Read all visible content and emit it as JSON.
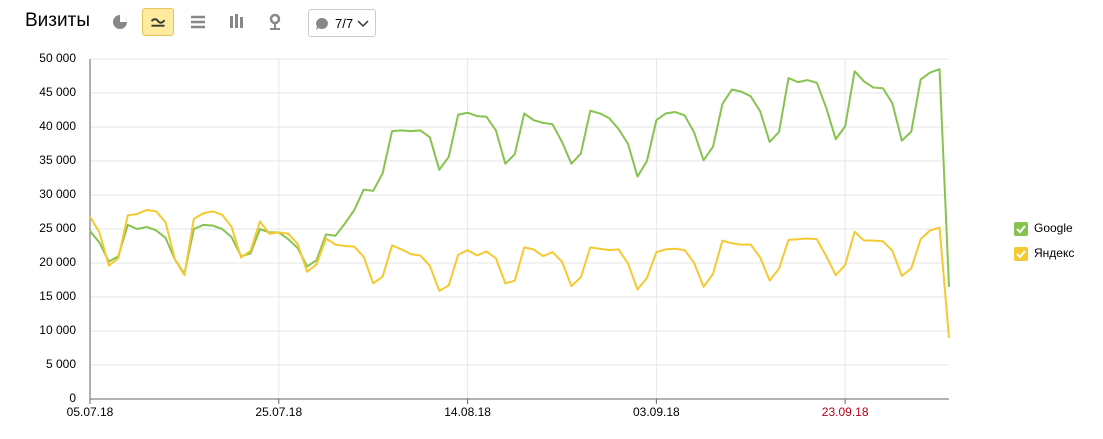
{
  "toolbar": {
    "title": "Визиты",
    "segments": "7/7"
  },
  "chart_data": {
    "type": "line",
    "categories": [
      "05.07.18",
      null,
      null,
      null,
      null,
      null,
      null,
      null,
      null,
      null,
      null,
      null,
      null,
      null,
      null,
      null,
      null,
      null,
      null,
      null,
      "25.07.18",
      null,
      null,
      null,
      null,
      null,
      null,
      null,
      null,
      null,
      null,
      null,
      null,
      null,
      null,
      null,
      null,
      null,
      null,
      null,
      "14.08.18",
      null,
      null,
      null,
      null,
      null,
      null,
      null,
      null,
      null,
      null,
      null,
      null,
      null,
      null,
      null,
      null,
      null,
      null,
      null,
      "03.09.18",
      null,
      null,
      null,
      null,
      null,
      null,
      null,
      null,
      null,
      null,
      null,
      null,
      null,
      null,
      null,
      null,
      null,
      null,
      null,
      "23.09.18",
      null,
      null,
      null,
      null,
      null,
      null,
      null,
      null,
      null,
      null,
      null
    ],
    "series": [
      {
        "name": "Google",
        "color": "#86c34f",
        "values": [
          24700,
          23000,
          20200,
          21000,
          25600,
          25000,
          25300,
          24800,
          23700,
          20500,
          18400,
          25000,
          25600,
          25500,
          25000,
          23800,
          21000,
          21400,
          25000,
          24500,
          24500,
          23500,
          22200,
          19500,
          20400,
          24200,
          24000,
          25800,
          27800,
          30800,
          30600,
          33200,
          39400,
          39500,
          39400,
          39500,
          38500,
          33700,
          35600,
          41800,
          42100,
          41600,
          41500,
          39500,
          34600,
          36000,
          42000,
          41000,
          40600,
          40400,
          37800,
          34600,
          36100,
          42400,
          42000,
          41300,
          39700,
          37500,
          32700,
          35000,
          41000,
          42000,
          42200,
          41700,
          39200,
          35100,
          37100,
          43400,
          45500,
          45200,
          44500,
          42300,
          37800,
          39300,
          47200,
          46600,
          46900,
          46500,
          42800,
          38200,
          40100,
          48200,
          46700,
          45800,
          45700,
          43500,
          38000,
          39300,
          47000,
          48000,
          48500,
          16500
        ]
      },
      {
        "name": "Яндекс",
        "color": "#f5c932",
        "values": [
          26800,
          24500,
          19600,
          20700,
          27000,
          27200,
          27800,
          27600,
          26000,
          20500,
          18200,
          26500,
          27300,
          27600,
          27100,
          25300,
          20800,
          21800,
          26100,
          24300,
          24500,
          24300,
          22800,
          18700,
          19800,
          23600,
          22700,
          22500,
          22400,
          20900,
          17000,
          18000,
          22600,
          22000,
          21300,
          21100,
          19600,
          15900,
          16700,
          21200,
          21900,
          21100,
          21700,
          20700,
          17000,
          17400,
          22300,
          22000,
          21000,
          21600,
          20200,
          16600,
          17900,
          22300,
          22100,
          21900,
          22000,
          19900,
          16100,
          17800,
          21600,
          22000,
          22100,
          21900,
          20000,
          16500,
          18400,
          23300,
          22900,
          22700,
          22700,
          20800,
          17400,
          19200,
          23400,
          23500,
          23600,
          23500,
          21000,
          18200,
          19700,
          24600,
          23300,
          23300,
          23200,
          21800,
          18100,
          19200,
          23500,
          24800,
          25200,
          9000
        ]
      }
    ],
    "ylim": [
      0,
      50000
    ],
    "yticks": [
      0,
      {
        "value": 5000,
        "label": "5 000"
      },
      {
        "value": 10000,
        "label": "10 000"
      },
      {
        "value": 15000,
        "label": "15 000"
      },
      {
        "value": 20000,
        "label": "20 000"
      },
      {
        "value": 25000,
        "label": "25 000"
      },
      {
        "value": 30000,
        "label": "30 000"
      },
      {
        "value": 35000,
        "label": "35 000"
      },
      {
        "value": 40000,
        "label": "40 000"
      },
      {
        "value": 45000,
        "label": "45 000"
      },
      {
        "value": 50000,
        "label": "50 000"
      }
    ],
    "grid": true,
    "legend": "right"
  }
}
